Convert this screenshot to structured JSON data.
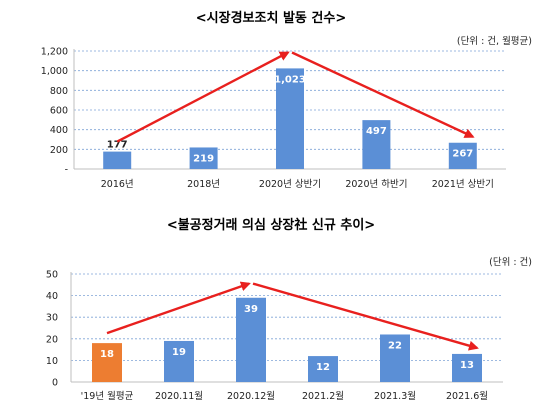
{
  "chart_data": [
    {
      "type": "bar",
      "title": "<시장경보조치 발동 건수>",
      "unit_label": "(단위 : 건, 월평균)",
      "categories": [
        "2016년",
        "2018년",
        "2020년 상반기",
        "2020년 하반기",
        "2021년 상반기"
      ],
      "values": [
        177,
        219,
        1023,
        497,
        267
      ],
      "value_labels": [
        "177",
        "219",
        "1,023",
        "497",
        "267"
      ],
      "ylim": [
        0,
        1200
      ],
      "yticks": [
        0,
        200,
        400,
        600,
        800,
        1000,
        1200
      ],
      "ytick_labels": [
        "-",
        "200",
        "400",
        "600",
        "800",
        "1,000",
        "1,200"
      ],
      "grid": "horizontal dotted",
      "bar_colors": [
        "#5b8fd6",
        "#5b8fd6",
        "#5b8fd6",
        "#5b8fd6",
        "#5b8fd6"
      ],
      "annotations": [
        {
          "type": "arrow",
          "color": "#e8201e",
          "from": {
            "x": "2016년",
            "y": 177
          },
          "via": {
            "x": "2020년 상반기",
            "y": 1195
          },
          "to": {
            "x": "2021년 상반기",
            "y": 267
          }
        }
      ]
    },
    {
      "type": "bar",
      "title": "<불공정거래 의심 상장社 신규 추이>",
      "unit_label": "(단위 : 건)",
      "categories": [
        "'19년 월평균",
        "2020.11월",
        "2020.12월",
        "2021.2월",
        "2021.3월",
        "2021.6월"
      ],
      "values": [
        18,
        19,
        39,
        12,
        22,
        13
      ],
      "value_labels": [
        "18",
        "19",
        "39",
        "12",
        "22",
        "13"
      ],
      "ylim": [
        0,
        50
      ],
      "yticks": [
        0,
        10,
        20,
        30,
        40,
        50
      ],
      "ytick_labels": [
        "0",
        "10",
        "20",
        "30",
        "40",
        "50"
      ],
      "grid": "horizontal dotted",
      "bar_colors": [
        "#ed7d31",
        "#5b8fd6",
        "#5b8fd6",
        "#5b8fd6",
        "#5b8fd6",
        "#5b8fd6"
      ],
      "annotations": [
        {
          "type": "arrow",
          "color": "#e8201e",
          "from": {
            "x": "'19년 월평균",
            "y": 18
          },
          "via": {
            "x": "2020.12월",
            "y": 46
          },
          "to": {
            "x": "2021.6월",
            "y": 13
          }
        }
      ]
    }
  ]
}
